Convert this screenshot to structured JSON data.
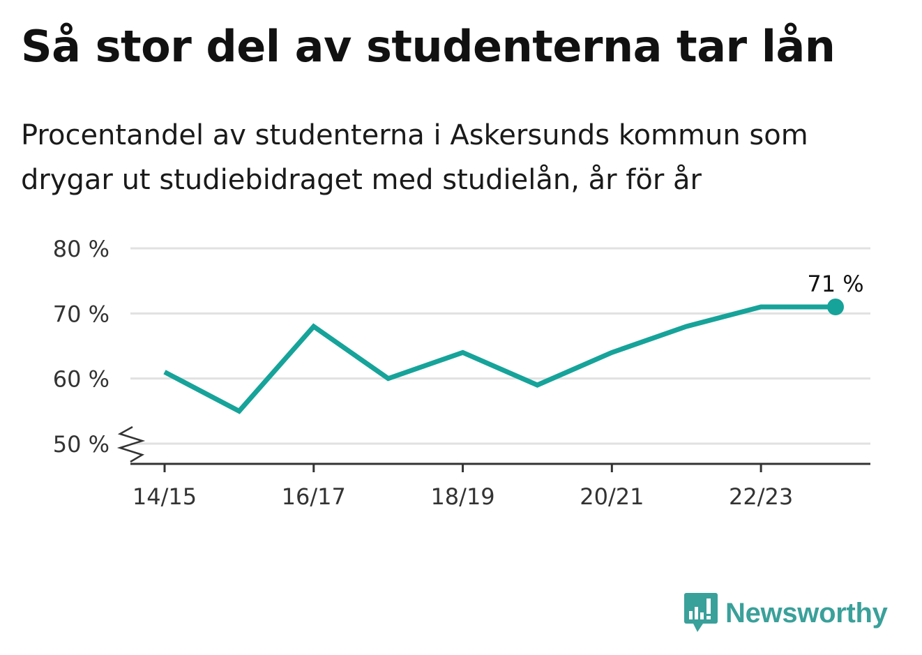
{
  "header": {
    "title": "Så stor del av studenterna tar lån",
    "subtitle": "Procentandel av studenterna i Askersunds kommun som drygar ut studiebidraget med studielån, år för år"
  },
  "brand": {
    "name": "Newsworthy",
    "color": "#3aa09a",
    "icon": "newsworthy-logo-icon"
  },
  "chart_data": {
    "type": "line",
    "x": [
      "14/15",
      "15/16",
      "16/17",
      "17/18",
      "18/19",
      "19/20",
      "20/21",
      "21/22",
      "22/23",
      "23/24"
    ],
    "series": [
      {
        "values": [
          61,
          55,
          68,
          60,
          64,
          59,
          64,
          68,
          71,
          71
        ],
        "color": "#16a39a"
      }
    ],
    "xticks": [
      "14/15",
      "16/17",
      "18/19",
      "20/21",
      "22/23"
    ],
    "yticks": [
      50,
      60,
      70,
      80
    ],
    "ytick_labels": [
      "50 %",
      "60 %",
      "70 %",
      "80 %"
    ],
    "ylim": [
      50,
      80
    ],
    "axis_break": true,
    "last_point_label": "71 %",
    "grid": true,
    "gridline_color": "#e1e1e1"
  }
}
